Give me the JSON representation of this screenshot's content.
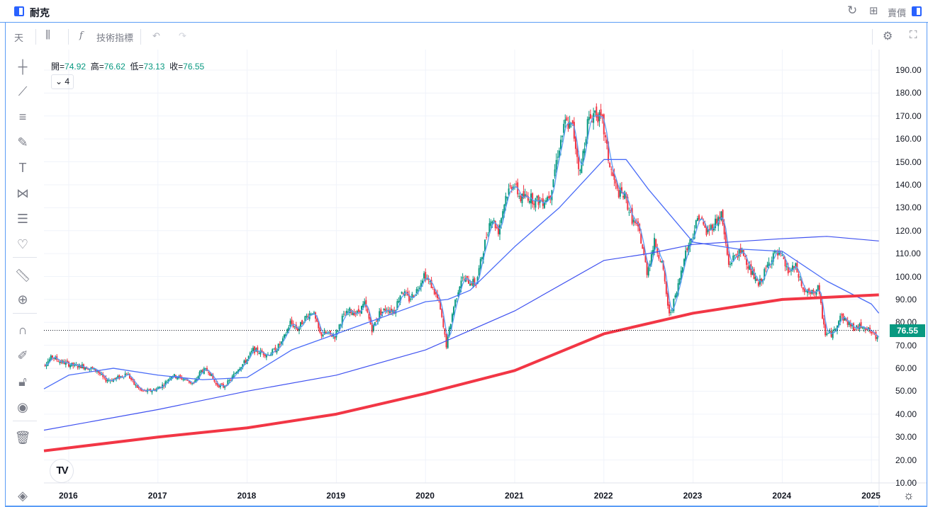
{
  "titlebar": {
    "title": "耐克",
    "sell_label": "賣價",
    "icons": [
      "panel-icon",
      "refresh-icon",
      "grid-icon",
      "panel-icon"
    ]
  },
  "toolbar": {
    "interval": "天",
    "indicators_label": "技術指標",
    "icons": [
      "candles-icon",
      "fx-icon",
      "undo-icon",
      "redo-icon",
      "settings-icon",
      "fullscreen-icon"
    ]
  },
  "legend": {
    "open_label": "開=",
    "open": "74.92",
    "high_label": "高=",
    "high": "76.62",
    "low_label": "低=",
    "low": "73.13",
    "close_label": "收=",
    "close": "76.55",
    "collapse_count": "4"
  },
  "left_tools": [
    "crosshair-icon",
    "trendline-icon",
    "parallel-lines-icon",
    "brush-icon",
    "text-icon",
    "pattern-icon",
    "fib-icon",
    "heart-icon",
    "ruler-icon",
    "zoom-in-icon",
    "magnet-icon",
    "lock-pencil-icon",
    "lock-icon",
    "eye-icon",
    "trash-icon",
    "layers-icon"
  ],
  "logo_text": "TV",
  "colors": {
    "up": "#089981",
    "down": "#f23645",
    "ma_fast": "#5b9cf6",
    "ma_mid": "#4a6cf7",
    "ma_slow": "#3f51f0",
    "ma_long": "#f23645",
    "accent": "#2962ff"
  },
  "chart_data": {
    "type": "candlestick",
    "title": "",
    "last_price": "76.55",
    "ylim": [
      7,
      196
    ],
    "y_ticks": [
      "190.00",
      "180.00",
      "170.00",
      "160.00",
      "150.00",
      "140.00",
      "130.00",
      "120.00",
      "110.00",
      "100.00",
      "90.00",
      "80.00",
      "70.00",
      "60.00",
      "50.00",
      "40.00",
      "30.00",
      "20.00",
      "10.00"
    ],
    "x_ticks": [
      "2016",
      "2017",
      "2018",
      "2019",
      "2020",
      "2021",
      "2022",
      "2023",
      "2024",
      "2025"
    ],
    "grid": true,
    "monthly_close": {
      "dates": [
        "2015-09",
        "2015-10",
        "2015-11",
        "2015-12",
        "2016-01",
        "2016-02",
        "2016-03",
        "2016-04",
        "2016-05",
        "2016-06",
        "2016-07",
        "2016-08",
        "2016-09",
        "2016-10",
        "2016-11",
        "2016-12",
        "2017-01",
        "2017-02",
        "2017-03",
        "2017-04",
        "2017-05",
        "2017-06",
        "2017-07",
        "2017-08",
        "2017-09",
        "2017-10",
        "2017-11",
        "2017-12",
        "2018-01",
        "2018-02",
        "2018-03",
        "2018-04",
        "2018-05",
        "2018-06",
        "2018-07",
        "2018-08",
        "2018-09",
        "2018-10",
        "2018-11",
        "2018-12",
        "2019-01",
        "2019-02",
        "2019-03",
        "2019-04",
        "2019-05",
        "2019-06",
        "2019-07",
        "2019-08",
        "2019-09",
        "2019-10",
        "2019-11",
        "2019-12",
        "2020-01",
        "2020-02",
        "2020-03",
        "2020-04",
        "2020-05",
        "2020-06",
        "2020-07",
        "2020-08",
        "2020-09",
        "2020-10",
        "2020-11",
        "2020-12",
        "2021-01",
        "2021-02",
        "2021-03",
        "2021-04",
        "2021-05",
        "2021-06",
        "2021-07",
        "2021-08",
        "2021-09",
        "2021-10",
        "2021-11",
        "2021-12",
        "2022-01",
        "2022-02",
        "2022-03",
        "2022-04",
        "2022-05",
        "2022-06",
        "2022-07",
        "2022-08",
        "2022-09",
        "2022-10",
        "2022-11",
        "2022-12",
        "2023-01",
        "2023-02",
        "2023-03",
        "2023-04",
        "2023-05",
        "2023-06",
        "2023-07",
        "2023-08",
        "2023-09",
        "2023-10",
        "2023-11",
        "2023-12",
        "2024-01",
        "2024-02",
        "2024-03",
        "2024-04",
        "2024-05",
        "2024-06",
        "2024-07",
        "2024-08",
        "2024-09",
        "2024-10",
        "2024-11",
        "2024-12",
        "2025-01",
        "2025-02"
      ],
      "values": [
        62,
        65,
        63,
        62,
        61,
        61,
        60,
        59,
        55,
        55,
        56,
        58,
        53,
        50,
        50,
        51,
        53,
        57,
        56,
        55,
        53,
        59,
        59,
        53,
        52,
        55,
        60,
        63,
        68,
        67,
        66,
        68,
        72,
        80,
        77,
        82,
        85,
        75,
        75,
        74,
        82,
        85,
        84,
        88,
        77,
        84,
        86,
        85,
        94,
        90,
        94,
        101,
        96,
        89,
        70,
        87,
        99,
        98,
        97,
        112,
        126,
        120,
        135,
        141,
        134,
        135,
        133,
        133,
        136,
        154,
        167,
        165,
        145,
        167,
        172,
        167,
        148,
        137,
        135,
        125,
        119,
        102,
        115,
        106,
        83,
        93,
        109,
        117,
        127,
        119,
        123,
        127,
        105,
        110,
        110,
        102,
        96,
        103,
        110,
        109,
        102,
        104,
        94,
        92,
        95,
        75,
        75,
        83,
        80,
        77,
        79,
        76,
        73,
        76.55
      ]
    },
    "series": [
      {
        "type": "line",
        "role": "moving-average-mid",
        "dates": [
          "2015-09",
          "2016-01",
          "2016-07",
          "2017-01",
          "2017-07",
          "2018-01",
          "2018-07",
          "2019-01",
          "2019-07",
          "2020-01",
          "2020-04",
          "2020-07",
          "2021-01",
          "2021-07",
          "2022-01",
          "2022-04",
          "2022-07",
          "2023-01",
          "2023-07",
          "2024-01",
          "2024-07",
          "2025-01",
          "2025-02"
        ],
        "values": [
          51,
          57,
          60,
          57,
          55,
          56,
          68,
          75,
          82,
          89,
          90,
          94,
          113,
          130,
          151,
          151,
          138,
          115,
          112,
          111,
          98,
          88,
          84
        ]
      },
      {
        "type": "line",
        "role": "moving-average-slow",
        "dates": [
          "2015-09",
          "2017-01",
          "2018-01",
          "2019-01",
          "2020-01",
          "2021-01",
          "2022-01",
          "2022-07",
          "2023-01",
          "2024-01",
          "2024-07",
          "2025-02"
        ],
        "values": [
          33,
          42,
          50,
          57,
          68,
          85,
          107,
          110,
          114,
          116.5,
          117.5,
          115.5
        ]
      },
      {
        "type": "line",
        "role": "moving-average-long",
        "dates": [
          "2015-09",
          "2017-01",
          "2018-01",
          "2019-01",
          "2020-01",
          "2021-01",
          "2022-01",
          "2023-01",
          "2024-01",
          "2025-02"
        ],
        "values": [
          24,
          30,
          34,
          40,
          49,
          59,
          75,
          84,
          90,
          92
        ]
      }
    ]
  }
}
